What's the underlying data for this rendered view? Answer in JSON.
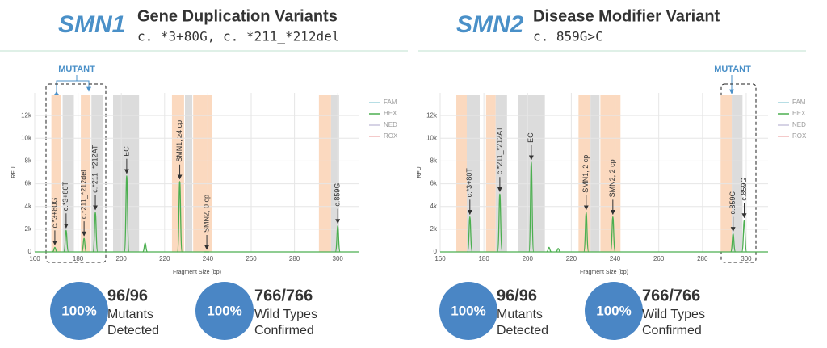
{
  "chart_data": [
    {
      "type": "electropherogram",
      "xlabel": "Fragment Size (bp)",
      "ylabel": "RFU",
      "xlim": [
        160,
        310
      ],
      "ylim": [
        0,
        14000
      ],
      "xticks": [
        160,
        180,
        200,
        220,
        240,
        260,
        280,
        300
      ],
      "yticks": [
        0,
        {
          "value": 2000,
          "label": "2k"
        },
        {
          "value": 4000,
          "label": "4k"
        },
        {
          "value": 6000,
          "label": "6k"
        },
        {
          "value": 8000,
          "label": "8k"
        },
        {
          "value": 10000,
          "label": "10k"
        },
        {
          "value": 12000,
          "label": "12k"
        }
      ],
      "grid": true,
      "legend": [
        {
          "name": "FAM",
          "color": "#9fd3dc"
        },
        {
          "name": "HEX",
          "color": "#4caf50"
        },
        {
          "name": "NED",
          "color": "#c9c4dc"
        },
        {
          "name": "ROX",
          "color": "#f0b8b8"
        }
      ],
      "bands": [
        {
          "range": [
            167.7,
            172.2
          ],
          "color": "#fbd9bf"
        },
        {
          "range": [
            172.9,
            178.1
          ],
          "color": "#dcdcdc"
        },
        {
          "range": [
            181.3,
            185.8
          ],
          "color": "#fbd9bf"
        },
        {
          "range": [
            186.2,
            191.4
          ],
          "color": "#dcdcdc"
        },
        {
          "range": [
            196.2,
            208.2
          ],
          "color": "#dcdcdc"
        },
        {
          "range": [
            223.4,
            229
          ],
          "color": "#fbd9bf"
        },
        {
          "range": [
            229.4,
            232.8
          ],
          "color": "#dcdcdc"
        },
        {
          "range": [
            233.2,
            241.8
          ],
          "color": "#fbd9bf"
        },
        {
          "range": [
            291.3,
            296.9
          ],
          "color": "#fbd9bf"
        },
        {
          "range": [
            296.9,
            300.6
          ],
          "color": "#dcdcdc"
        }
      ],
      "x": [
        169.3,
        174.5,
        182.8,
        188,
        202.5,
        211,
        227,
        239.5,
        300
      ],
      "series": [
        {
          "color": "#4caf50",
          "values": [
            400,
            1900,
            1200,
            3500,
            6700,
            800,
            6200,
            0,
            2300
          ],
          "labels": [
            "c.*3+80G",
            "c.*3+80T",
            "c.*211_*212del",
            "c.*211_*212AT",
            "EC",
            null,
            "SMN1, ≥4 cp",
            "SMN2, 0 cp",
            "c.859G"
          ]
        }
      ]
    },
    {
      "type": "electropherogram",
      "xlabel": "Fragment Size (bp)",
      "ylabel": "RFU",
      "xlim": [
        160,
        310
      ],
      "ylim": [
        0,
        14000
      ],
      "xticks": [
        160,
        180,
        200,
        220,
        240,
        260,
        280,
        300
      ],
      "yticks": [
        0,
        {
          "value": 2000,
          "label": "2k"
        },
        {
          "value": 4000,
          "label": "4k"
        },
        {
          "value": 6000,
          "label": "6k"
        },
        {
          "value": 8000,
          "label": "8k"
        },
        {
          "value": 10000,
          "label": "10k"
        },
        {
          "value": 12000,
          "label": "12k"
        }
      ],
      "grid": true,
      "legend": [
        {
          "name": "FAM",
          "color": "#9fd3dc"
        },
        {
          "name": "HEX",
          "color": "#4caf50"
        },
        {
          "name": "NED",
          "color": "#c9c4dc"
        },
        {
          "name": "ROX",
          "color": "#f0b8b8"
        }
      ],
      "bands": [
        {
          "range": [
            167.4,
            172.2
          ],
          "color": "#fbd9bf"
        },
        {
          "range": [
            172.2,
            178.1
          ],
          "color": "#dcdcdc"
        },
        {
          "range": [
            181,
            185.4
          ],
          "color": "#fbd9bf"
        },
        {
          "range": [
            185.4,
            190.6
          ],
          "color": "#dcdcdc"
        },
        {
          "range": [
            195.7,
            207.9
          ],
          "color": "#dcdcdc"
        },
        {
          "range": [
            223.3,
            228.8
          ],
          "color": "#fbd9bf"
        },
        {
          "range": [
            228.8,
            232.9
          ],
          "color": "#dcdcdc"
        },
        {
          "range": [
            233.3,
            242.5
          ],
          "color": "#fbd9bf"
        },
        {
          "range": [
            288.3,
            293.4
          ],
          "color": "#fbd9bf"
        },
        {
          "range": [
            293.4,
            298.3
          ],
          "color": "#dcdcdc"
        }
      ],
      "x": [
        173.6,
        187.3,
        201.7,
        209.8,
        214,
        226.8,
        239,
        294,
        299.1
      ],
      "series": [
        {
          "color": "#4caf50",
          "values": [
            3100,
            5100,
            7900,
            400,
            300,
            3500,
            3100,
            1600,
            2800
          ],
          "labels": [
            "c.*3+80T",
            "c.*211_*212AT",
            "EC",
            null,
            null,
            "SMN1, 2 cp",
            "SMN2, 2 cp",
            "c.859C",
            "c.859G"
          ]
        }
      ]
    }
  ],
  "panels": [
    {
      "gene": "SMN1",
      "title": "Gene Duplication Variants",
      "subtitle": "c. *3+80G, c. *211_*212del",
      "mutant_label": "MUTANT",
      "stats": [
        {
          "percent": "100%",
          "count": "96/96",
          "line1": "Mutants",
          "line2": "Detected"
        },
        {
          "percent": "100%",
          "count": "766/766",
          "line1": "Wild Types",
          "line2": "Confirmed"
        }
      ]
    },
    {
      "gene": "SMN2",
      "title": "Disease Modifier Variant",
      "subtitle": "c. 859G>C",
      "mutant_label": "MUTANT",
      "stats": [
        {
          "percent": "100%",
          "count": "96/96",
          "line1": "Mutants",
          "line2": "Detected"
        },
        {
          "percent": "100%",
          "count": "766/766",
          "line1": "Wild Types",
          "line2": "Confirmed"
        }
      ]
    }
  ]
}
